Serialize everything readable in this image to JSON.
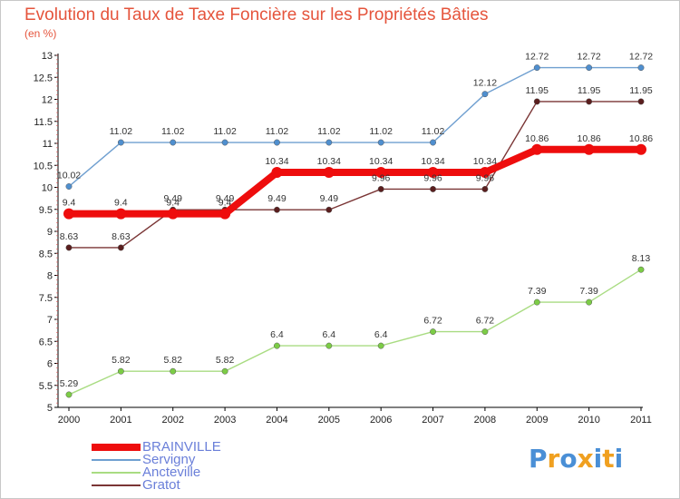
{
  "title": "Evolution du Taux de Taxe Foncière sur les Propriétés Bâties",
  "subtitle": "(en %)",
  "logo_text": "Proxiti",
  "logo_colors": [
    "#4a8fd6",
    "#f0a020",
    "#4a8fd6",
    "#f0a020",
    "#4a8fd6",
    "#f0a020",
    "#4a8fd6"
  ],
  "chart_data": {
    "type": "line",
    "x": [
      "2000",
      "2001",
      "2002",
      "2003",
      "2004",
      "2005",
      "2006",
      "2007",
      "2008",
      "2009",
      "2010",
      "2011"
    ],
    "ylim": [
      5,
      13
    ],
    "yticks": [
      "5",
      "5.5",
      "6",
      "6.5",
      "7",
      "7.5",
      "8",
      "8.5",
      "9",
      "9.5",
      "10",
      "10.5",
      "11",
      "11.5",
      "12",
      "12.5",
      "13"
    ],
    "grid": false,
    "legend_placement": "bottom-left",
    "series": [
      {
        "name": "Servigny",
        "color": "#6f9fd0",
        "marker": "#4f8fcf",
        "width": 1.4,
        "values": [
          10.02,
          11.02,
          11.02,
          11.02,
          11.02,
          11.02,
          11.02,
          11.02,
          12.12,
          12.72,
          12.72,
          12.72
        ],
        "labels": [
          "10.02",
          "11.02",
          "11.02",
          "11.02",
          "11.02",
          "11.02",
          "11.02",
          "11.02",
          "12.12",
          "12.72",
          "12.72",
          "12.72"
        ]
      },
      {
        "name": "Gratot",
        "color": "#7a3535",
        "marker": "#5a1e1e",
        "width": 1.4,
        "values": [
          8.63,
          8.63,
          9.49,
          9.49,
          9.49,
          9.49,
          9.96,
          9.96,
          9.96,
          11.95,
          11.95,
          11.95
        ],
        "labels": [
          "8.63",
          "8.63",
          "9.49",
          "9.49",
          "9.49",
          "9.49",
          "9.96",
          "9.96",
          "9.96",
          "11.95",
          "11.95",
          "11.95"
        ]
      },
      {
        "name": "Ancteville",
        "color": "#a9dc82",
        "marker": "#7ccc46",
        "width": 1.4,
        "values": [
          5.29,
          5.82,
          5.82,
          5.82,
          6.4,
          6.4,
          6.4,
          6.72,
          6.72,
          7.39,
          7.39,
          8.13
        ],
        "labels": [
          "5.29",
          "5.82",
          "5.82",
          "5.82",
          "6.4",
          "6.4",
          "6.4",
          "6.72",
          "6.72",
          "7.39",
          "7.39",
          "8.13"
        ]
      },
      {
        "name": "BRAINVILLE",
        "color": "#ee0d0d",
        "marker": "#ee0d0d",
        "width": 8,
        "values": [
          9.4,
          9.4,
          9.4,
          9.4,
          10.34,
          10.34,
          10.34,
          10.34,
          10.34,
          10.86,
          10.86,
          10.86
        ],
        "labels": [
          "9.4",
          "9.4",
          "9.4",
          "9.4",
          "10.34",
          "10.34",
          "10.34",
          "10.34",
          "10.34",
          "10.86",
          "10.86",
          "10.86"
        ]
      }
    ],
    "legend_order": [
      "BRAINVILLE",
      "Servigny",
      "Ancteville",
      "Gratot"
    ]
  }
}
